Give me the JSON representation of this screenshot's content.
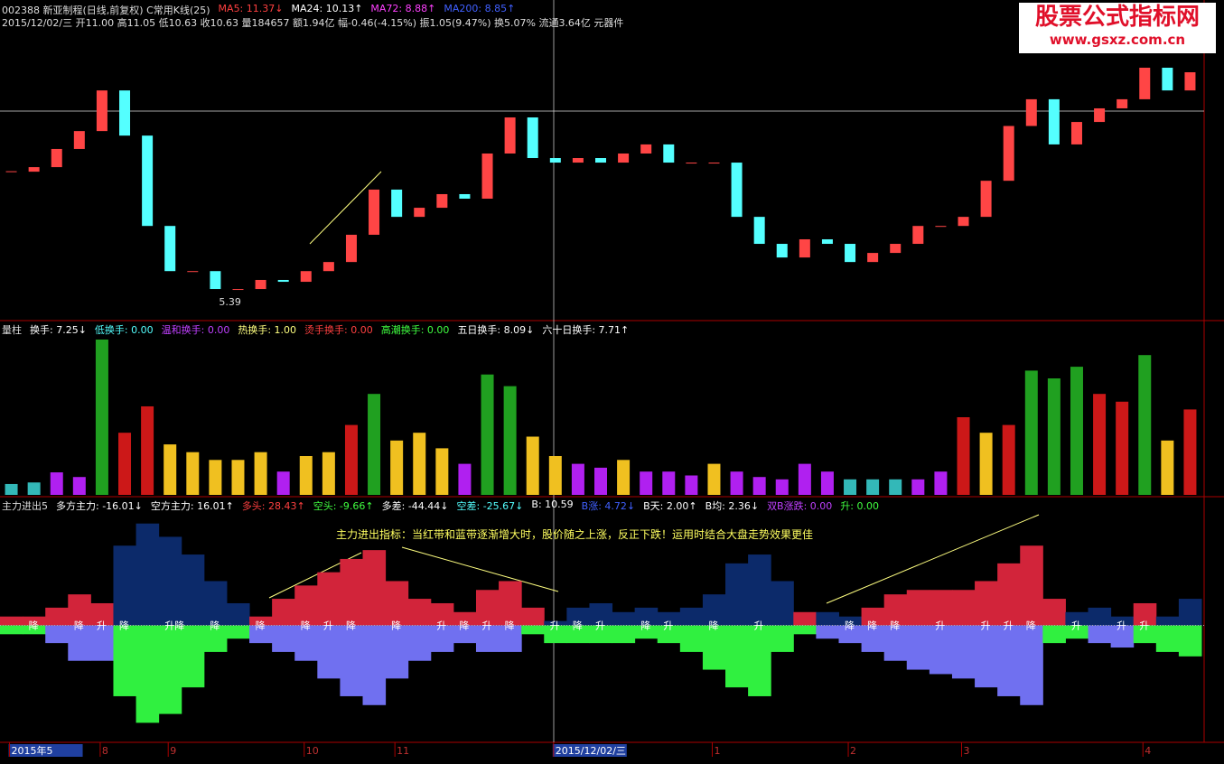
{
  "watermark": {
    "title": "股票公式指标网",
    "url": "www.gsxz.com.cn"
  },
  "chart_data": [
    {
      "type": "candlestick",
      "stats": [
        {
          "text": "002388 新亚制程(日线,前复权) C常用K线(25)",
          "color": "#dddddd"
        },
        {
          "text": "MA5: 11.37↓",
          "color": "#ff4040"
        },
        {
          "text": "MA24: 10.13↑",
          "color": "#ffffff"
        },
        {
          "text": "MA72: 8.88↑",
          "color": "#ff40ff"
        },
        {
          "text": "MA200: 8.85↑",
          "color": "#4060ff"
        }
      ],
      "info": "2015/12/02/三 开11.00 高11.05 低10.63 收10.63 量184657 额1.94亿 幅-0.46(-4.15%) 振1.05(9.47%) 换5.07% 流通3.64亿 元器件",
      "close": [
        10.29,
        10.46,
        11.14,
        11.81,
        13.33,
        11.64,
        8.26,
        6.57,
        6.57,
        5.9,
        5.9,
        6.24,
        6.17,
        6.57,
        6.91,
        7.93,
        9.62,
        8.6,
        8.94,
        9.45,
        9.28,
        10.97,
        12.32,
        10.8,
        10.63,
        10.8,
        10.63,
        10.97,
        11.31,
        10.63,
        10.63,
        10.63,
        8.6,
        7.59,
        7.08,
        7.76,
        7.59,
        6.91,
        7.25,
        7.59,
        8.26,
        8.26,
        8.6,
        9.95,
        12.0,
        13.0,
        11.31,
        12.15,
        12.66,
        13.0,
        14.18,
        13.33,
        14.01
      ],
      "low_mark": 5.39,
      "up_color": "#ff4545",
      "down_color": "#54ffff",
      "ylim": [
        4.82,
        15.7
      ],
      "categories": [
        "2015年5",
        null,
        null,
        null,
        "8",
        null,
        null,
        "9",
        null,
        null,
        null,
        null,
        null,
        "10",
        null,
        null,
        null,
        "11",
        null,
        null,
        null,
        null,
        null,
        null,
        "2015/12/02/三",
        null,
        null,
        null,
        null,
        null,
        null,
        "1",
        null,
        null,
        null,
        null,
        null,
        "2",
        null,
        null,
        null,
        null,
        "3",
        null,
        null,
        null,
        null,
        null,
        null,
        null,
        "4",
        null,
        null
      ]
    },
    {
      "type": "bar",
      "stats": [
        {
          "text": "量柱",
          "color": "#dddddd"
        },
        {
          "text": "换手: 7.25↓",
          "color": "#ffffff"
        },
        {
          "text": "低换手: 0.00",
          "color": "#54ffff"
        },
        {
          "text": "温和换手: 0.00",
          "color": "#c040ff"
        },
        {
          "text": "热换手: 1.00",
          "color": "#ffff80"
        },
        {
          "text": "烫手换手: 0.00",
          "color": "#ff4040"
        },
        {
          "text": "高潮换手: 0.00",
          "color": "#40ff40"
        },
        {
          "text": "五日换手: 8.09↓",
          "color": "#ffffff"
        },
        {
          "text": "六十日换手: 7.71↑",
          "color": "#ffffff"
        }
      ],
      "values": [
        1.4,
        1.6,
        2.9,
        2.3,
        20,
        8,
        11.4,
        6.5,
        5.5,
        4.5,
        4.5,
        5.5,
        3,
        5,
        5.5,
        9,
        13,
        7,
        8,
        6,
        4,
        15.5,
        14,
        7.5,
        5,
        4,
        3.5,
        4.5,
        3,
        3,
        2.5,
        4,
        3,
        2.3,
        2,
        4,
        3,
        2,
        2,
        2,
        2,
        3,
        10,
        8,
        9,
        16,
        15,
        16.5,
        13,
        12,
        18,
        7,
        11
      ],
      "colors": [
        "#33b8b8",
        "#33b8b8",
        "#b020f0",
        "#b020f0",
        "#20a020",
        "#cc1818",
        "#cc1818",
        "#f0c020",
        "#f0c020",
        "#f0c020",
        "#f0c020",
        "#f0c020",
        "#b020f0",
        "#f0c020",
        "#f0c020",
        "#cc1818",
        "#20a020",
        "#f0c020",
        "#f0c020",
        "#f0c020",
        "#b020f0",
        "#20a020",
        "#20a020",
        "#f0c020",
        "#f0c020",
        "#b020f0",
        "#b020f0",
        "#f0c020",
        "#b020f0",
        "#b020f0",
        "#b020f0",
        "#f0c020",
        "#b020f0",
        "#b020f0",
        "#b020f0",
        "#b020f0",
        "#b020f0",
        "#33b8b8",
        "#33b8b8",
        "#33b8b8",
        "#b020f0",
        "#b020f0",
        "#cc1818",
        "#f0c020",
        "#cc1818",
        "#20a020",
        "#20a020",
        "#20a020",
        "#cc1818",
        "#cc1818",
        "#20a020",
        "#f0c020",
        "#cc1818"
      ],
      "ylim": [
        0,
        20
      ]
    },
    {
      "type": "area",
      "stats": [
        {
          "text": "主力进出5",
          "color": "#dddddd"
        },
        {
          "text": "多方主力: -16.01↓",
          "color": "#ffffff"
        },
        {
          "text": "空方主力: 16.01↑",
          "color": "#ffffff"
        },
        {
          "text": "多头: 28.43↑",
          "color": "#ff4040"
        },
        {
          "text": "空头: -9.66↑",
          "color": "#40ff40"
        },
        {
          "text": "多差: -44.44↓",
          "color": "#ffffff"
        },
        {
          "text": "空差: -25.67↓",
          "color": "#54ffff"
        },
        {
          "text": "B: 10.59",
          "color": "#ffffff"
        },
        {
          "text": "B涨: 4.72↓",
          "color": "#4060ff"
        },
        {
          "text": "B天: 2.00↑",
          "color": "#ffffff"
        },
        {
          "text": "B均: 2.36↓",
          "color": "#ffffff"
        },
        {
          "text": "双B涨跌: 0.00",
          "color": "#c040ff"
        },
        {
          "text": "升: 0.00",
          "color": "#40ff40"
        }
      ],
      "annotation": "主力进出指标：当红带和蓝带逐渐增大时，股价随之上涨，反正下跌！运用时结合大盘走势效果更佳",
      "upper": [
        10,
        10,
        20,
        35,
        25,
        90,
        115,
        100,
        80,
        50,
        25,
        10,
        30,
        45,
        60,
        75,
        85,
        50,
        30,
        25,
        15,
        40,
        50,
        20,
        5,
        20,
        25,
        15,
        20,
        15,
        20,
        35,
        70,
        80,
        50,
        15,
        15,
        10,
        20,
        35,
        40,
        40,
        40,
        50,
        70,
        90,
        30,
        15,
        20,
        10,
        25,
        10,
        30
      ],
      "upper_colors": [
        "#d2243a",
        "#d2243a",
        "#d2243a",
        "#d2243a",
        "#d2243a",
        "#0c2a6a",
        "#0c2a6a",
        "#0c2a6a",
        "#0c2a6a",
        "#0c2a6a",
        "#0c2a6a",
        "#d2243a",
        "#d2243a",
        "#d2243a",
        "#d2243a",
        "#d2243a",
        "#d2243a",
        "#d2243a",
        "#d2243a",
        "#d2243a",
        "#d2243a",
        "#d2243a",
        "#d2243a",
        "#d2243a",
        "#0c2a6a",
        "#0c2a6a",
        "#0c2a6a",
        "#0c2a6a",
        "#0c2a6a",
        "#0c2a6a",
        "#0c2a6a",
        "#0c2a6a",
        "#0c2a6a",
        "#0c2a6a",
        "#0c2a6a",
        "#d2243a",
        "#0c2a6a",
        "#0c2a6a",
        "#d2243a",
        "#d2243a",
        "#d2243a",
        "#d2243a",
        "#d2243a",
        "#d2243a",
        "#d2243a",
        "#d2243a",
        "#d2243a",
        "#0c2a6a",
        "#0c2a6a",
        "#0c2a6a",
        "#d2243a",
        "#0c2a6a",
        "#0c2a6a"
      ],
      "lower": [
        -10,
        -10,
        -20,
        -40,
        -40,
        -80,
        -110,
        -100,
        -70,
        -30,
        -15,
        -20,
        -30,
        -40,
        -60,
        -80,
        -90,
        -60,
        -40,
        -30,
        -20,
        -30,
        -30,
        -10,
        -20,
        -20,
        -20,
        -20,
        -15,
        -20,
        -30,
        -50,
        -70,
        -80,
        -30,
        -10,
        -15,
        -20,
        -30,
        -40,
        -50,
        -55,
        -60,
        -70,
        -80,
        -90,
        -20,
        -15,
        -20,
        -25,
        -20,
        -30,
        -35
      ],
      "lower_colors": [
        "#30f040",
        "#30f040",
        "#7070f0",
        "#7070f0",
        "#7070f0",
        "#30f040",
        "#30f040",
        "#30f040",
        "#30f040",
        "#30f040",
        "#30f040",
        "#7070f0",
        "#7070f0",
        "#7070f0",
        "#7070f0",
        "#7070f0",
        "#7070f0",
        "#7070f0",
        "#7070f0",
        "#7070f0",
        "#7070f0",
        "#7070f0",
        "#7070f0",
        "#30f040",
        "#30f040",
        "#30f040",
        "#30f040",
        "#30f040",
        "#30f040",
        "#30f040",
        "#30f040",
        "#30f040",
        "#30f040",
        "#30f040",
        "#30f040",
        "#30f040",
        "#7070f0",
        "#7070f0",
        "#7070f0",
        "#7070f0",
        "#7070f0",
        "#7070f0",
        "#7070f0",
        "#7070f0",
        "#7070f0",
        "#7070f0",
        "#30f040",
        "#30f040",
        "#7070f0",
        "#7070f0",
        "#30f040",
        "#30f040",
        "#30f040"
      ],
      "signals": [
        null,
        "降",
        null,
        "降",
        "升",
        "降",
        null,
        "升降",
        null,
        "降",
        null,
        "降",
        null,
        "降",
        "升",
        "降",
        null,
        "降",
        null,
        "升",
        "降",
        "升",
        "降",
        null,
        "升",
        "降",
        "升",
        null,
        "降",
        "升",
        null,
        "降",
        null,
        "升",
        null,
        null,
        null,
        "降",
        "降",
        "降",
        null,
        "升",
        null,
        "升",
        "升",
        "降",
        null,
        "升",
        null,
        "升",
        "升",
        null,
        null
      ],
      "ylim": [
        -130,
        130
      ]
    }
  ]
}
